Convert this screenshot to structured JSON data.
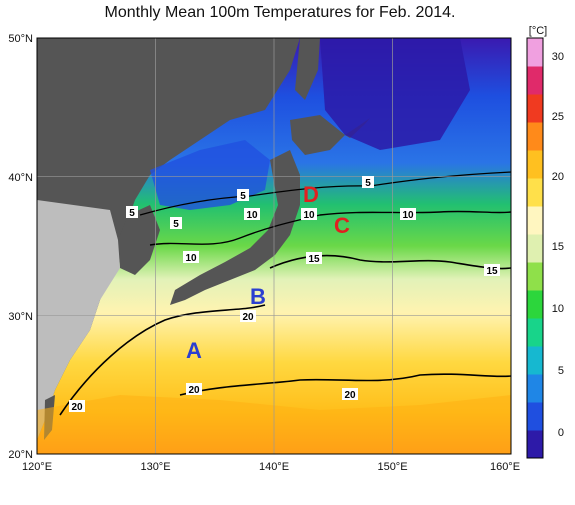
{
  "title": "Monthly Mean 100m Temperatures for Feb. 2014.",
  "map": {
    "lon_range": [
      120,
      160
    ],
    "lat_range": [
      20,
      50
    ],
    "lon_ticks": [
      "120°E",
      "130°E",
      "140°E",
      "150°E",
      "160°E"
    ],
    "lat_ticks": [
      "50°N",
      "40°N",
      "30°N",
      "20°N"
    ],
    "grid": true
  },
  "colorbar": {
    "unit": "[°C]",
    "ticks": [
      "30",
      "25",
      "20",
      "15",
      "10",
      "5",
      "0"
    ],
    "range": [
      -3,
      31
    ],
    "colors": [
      "#2d1aa8",
      "#1f4fe0",
      "#1f86e6",
      "#16b8d0",
      "#18d48a",
      "#2cd63c",
      "#8fe04a",
      "#dff0b0",
      "#fff6c0",
      "#ffe04a",
      "#ffc020",
      "#ff8a1a",
      "#f03a20",
      "#e02a6a",
      "#f0a0e0"
    ]
  },
  "contour_labels": [
    "5",
    "5",
    "5",
    "5",
    "10",
    "10",
    "10",
    "10",
    "15",
    "15",
    "20",
    "20",
    "20",
    "20"
  ],
  "markers": [
    {
      "text": "A",
      "color": "#2b3fd0"
    },
    {
      "text": "B",
      "color": "#2b3fd0"
    },
    {
      "text": "C",
      "color": "#e02020"
    },
    {
      "text": "D",
      "color": "#e02020"
    }
  ]
}
